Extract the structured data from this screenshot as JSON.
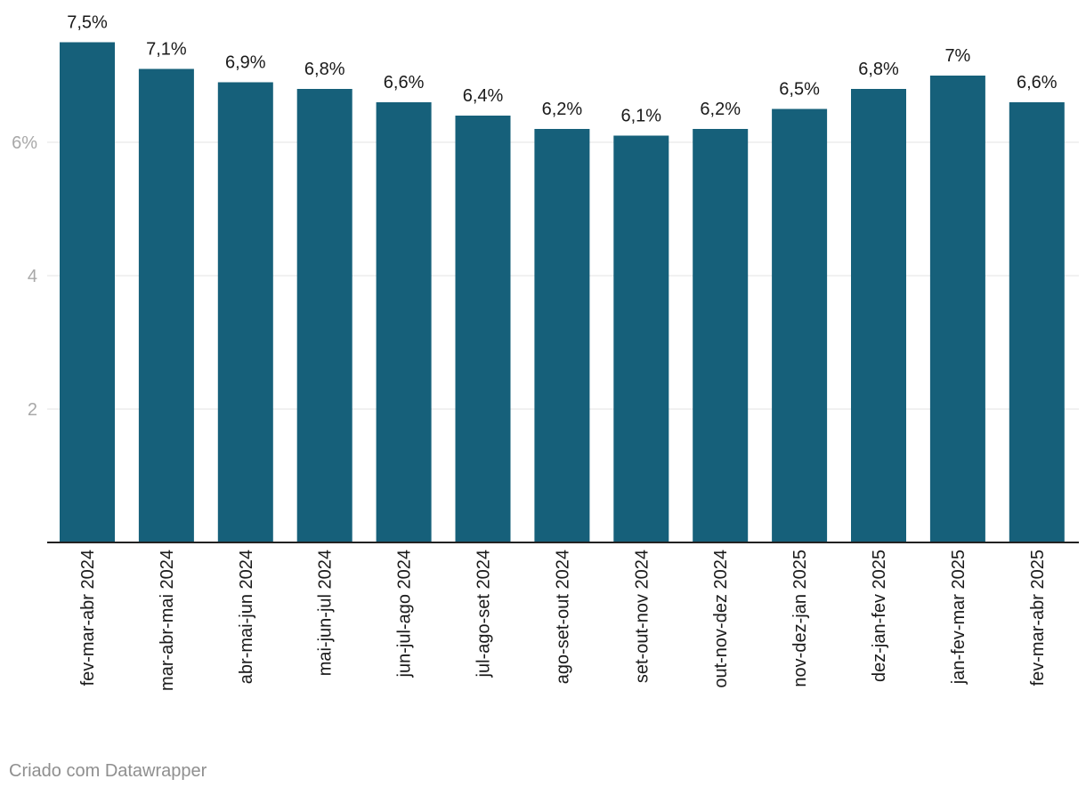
{
  "chart_data": {
    "type": "bar",
    "categories": [
      "fev-mar-abr 2024",
      "mar-abr-mai 2024",
      "abr-mai-jun 2024",
      "mai-jun-jul 2024",
      "jun-jul-ago 2024",
      "jul-ago-set 2024",
      "ago-set-out 2024",
      "set-out-nov 2024",
      "out-nov-dez 2024",
      "nov-dez-jan 2025",
      "dez-jan-fev 2025",
      "jan-fev-mar 2025",
      "fev-mar-abr 2025"
    ],
    "values": [
      7.5,
      7.1,
      6.9,
      6.8,
      6.6,
      6.4,
      6.2,
      6.1,
      6.2,
      6.5,
      6.8,
      7.0,
      6.6
    ],
    "data_labels": [
      "7,5%",
      "7,1%",
      "6,9%",
      "6,8%",
      "6,6%",
      "6,4%",
      "6,2%",
      "6,1%",
      "6,2%",
      "6,5%",
      "6,8%",
      "7%",
      "6,6%"
    ],
    "y_ticks": [
      {
        "value": 2,
        "label": "2"
      },
      {
        "value": 4,
        "label": "4"
      },
      {
        "value": 6,
        "label": "6%"
      }
    ],
    "ylim": [
      0,
      7.5
    ],
    "grid": true,
    "bar_color": "#16607a",
    "title": "",
    "xlabel": "",
    "ylabel": ""
  },
  "footer": {
    "credit": "Criado com Datawrapper"
  }
}
